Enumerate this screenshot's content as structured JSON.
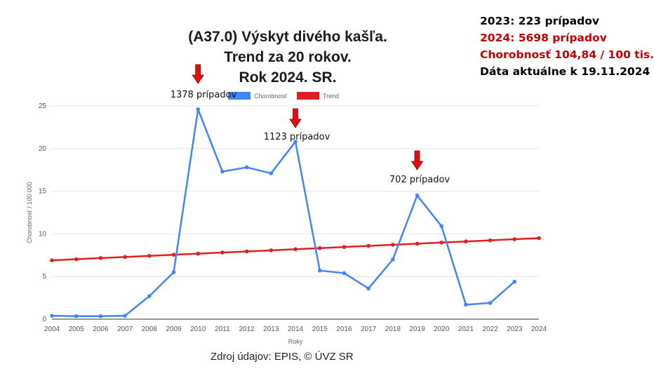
{
  "title": {
    "line1": "(A37.0) Výskyt divého kašľa.",
    "line2": "Trend za 20 rokov.",
    "line3": "Rok 2024. SR."
  },
  "info": {
    "line1": "2023: 223 prípadov",
    "line2": "2024: 5698 prípadov",
    "line3": "Chorobnosť 104,84 / 100 tis.",
    "line4": "Dáta aktuálne k 19.11.2024",
    "color_black": "#000000",
    "color_red": "#c00000"
  },
  "source": "Zdroj údajov: EPIS, © ÚVZ SR",
  "annotations": [
    {
      "text": "1378 prípadov",
      "year": "2010",
      "value": 24.6
    },
    {
      "text": "1123 prípadov",
      "year": "2014",
      "value": 20.8
    },
    {
      "text": "702 prípadov",
      "year": "2019",
      "value": 14.5
    }
  ],
  "chart_data": {
    "type": "line",
    "title": "",
    "xlabel": "Roky",
    "ylabel": "Chorobnosť / 100 000",
    "categories": [
      "2004",
      "2005",
      "2006",
      "2007",
      "2008",
      "2009",
      "2010",
      "2011",
      "2012",
      "2013",
      "2014",
      "2015",
      "2016",
      "2017",
      "2018",
      "2019",
      "2020",
      "2021",
      "2022",
      "2023",
      "2024"
    ],
    "ylim": [
      0,
      25
    ],
    "yticks": [
      0,
      5,
      10,
      15,
      20,
      25
    ],
    "grid": true,
    "legend_position": "top",
    "series": [
      {
        "name": "Chorobnosť",
        "color": "#4285f4",
        "values": [
          0.4,
          0.35,
          0.35,
          0.4,
          2.7,
          5.5,
          24.6,
          17.3,
          17.8,
          17.1,
          20.8,
          5.7,
          5.4,
          3.6,
          7.0,
          14.5,
          10.9,
          1.7,
          1.9,
          4.4,
          null
        ]
      },
      {
        "name": "Trend",
        "color": "#e02020",
        "values": [
          6.9,
          7.03,
          7.16,
          7.29,
          7.42,
          7.55,
          7.68,
          7.81,
          7.94,
          8.07,
          8.2,
          8.33,
          8.46,
          8.59,
          8.72,
          8.85,
          8.98,
          9.11,
          9.24,
          9.37,
          9.5
        ]
      }
    ]
  }
}
